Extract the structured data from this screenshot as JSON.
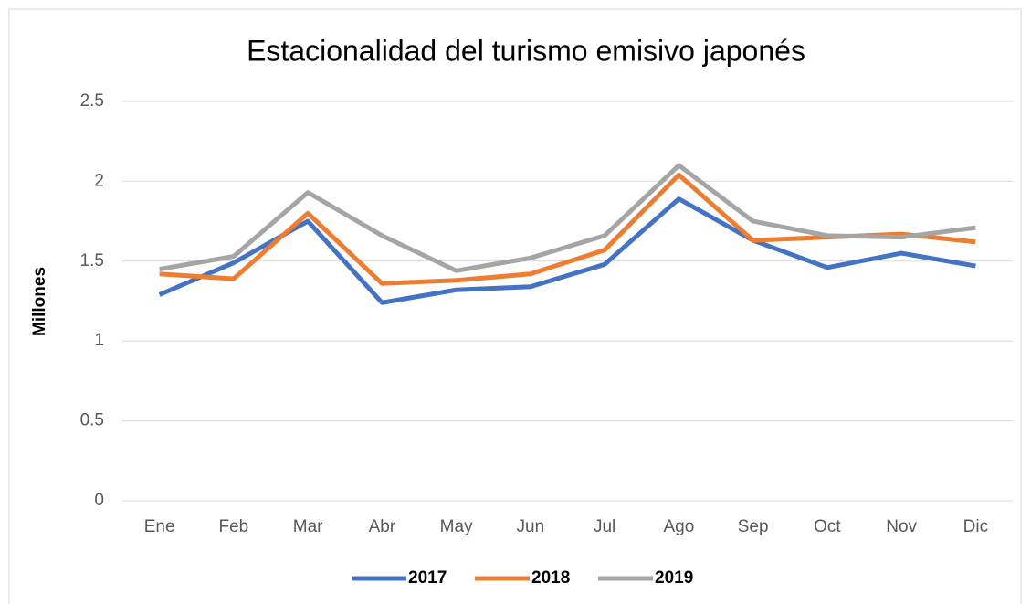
{
  "chart_data": {
    "type": "line",
    "title": "Estacionalidad del turismo emisivo japonés",
    "ylabel": "Millones",
    "categories": [
      "Ene",
      "Feb",
      "Mar",
      "Abr",
      "May",
      "Jun",
      "Jul",
      "Ago",
      "Sep",
      "Oct",
      "Nov",
      "Dic"
    ],
    "series": [
      {
        "name": "2017",
        "color": "#4472c4",
        "values": [
          1.29,
          1.49,
          1.75,
          1.24,
          1.32,
          1.34,
          1.48,
          1.89,
          1.63,
          1.46,
          1.55,
          1.47
        ]
      },
      {
        "name": "2018",
        "color": "#ed7d31",
        "values": [
          1.42,
          1.39,
          1.8,
          1.36,
          1.38,
          1.42,
          1.57,
          2.04,
          1.63,
          1.65,
          1.67,
          1.62
        ]
      },
      {
        "name": "2019",
        "color": "#a5a5a5",
        "values": [
          1.45,
          1.53,
          1.93,
          1.66,
          1.44,
          1.52,
          1.66,
          2.1,
          1.75,
          1.66,
          1.65,
          1.71
        ]
      }
    ],
    "ylim": [
      0,
      2.5
    ],
    "yticks": [
      0,
      0.5,
      1,
      1.5,
      2,
      2.5
    ],
    "grid": true,
    "legend": "bottom"
  }
}
